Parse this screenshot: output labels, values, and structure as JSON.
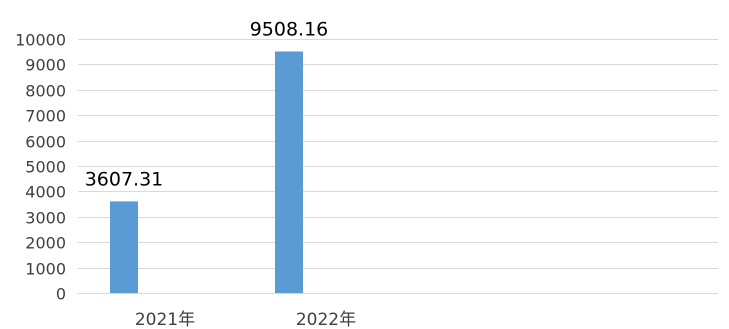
{
  "chart_data": {
    "type": "bar",
    "categories": [
      "2021年",
      "2022年"
    ],
    "series": [
      {
        "values": [
          3607.31,
          9508.16
        ]
      }
    ],
    "data_labels": [
      "3607.31",
      "9508.16"
    ],
    "yticks": [
      0,
      1000,
      2000,
      3000,
      4000,
      5000,
      6000,
      7000,
      8000,
      9000,
      10000
    ],
    "ylim": [
      0,
      10000
    ],
    "grid": true,
    "legend": "none",
    "colors": {
      "bar": "#5b9bd5",
      "grid": "#d9d9d9",
      "text": "#404040"
    }
  }
}
